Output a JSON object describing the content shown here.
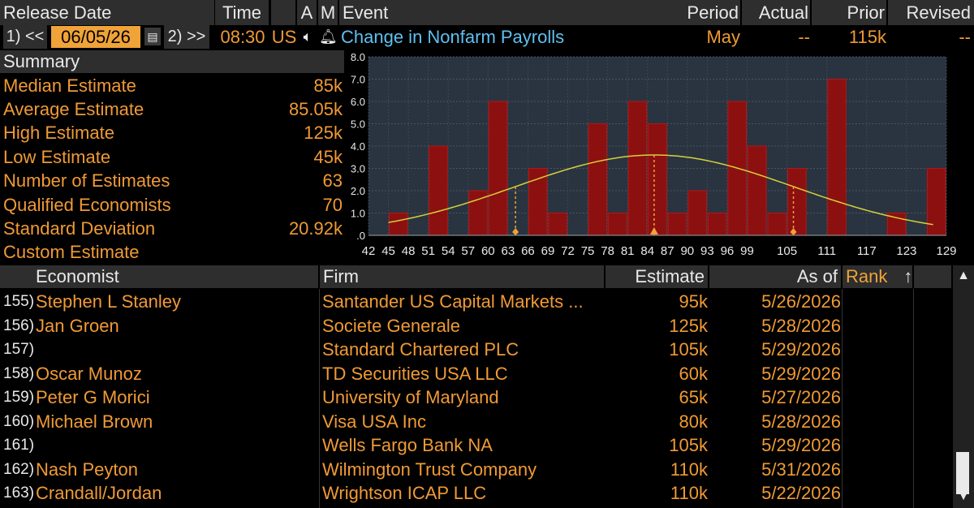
{
  "header": {
    "release_date": "Release Date",
    "time": "Time",
    "a": "A",
    "m": "M",
    "event": "Event",
    "period": "Period",
    "actual": "Actual",
    "prior": "Prior",
    "revised": "Revised"
  },
  "release": {
    "prev_btn": "1) <<",
    "date": "06/05/26",
    "next_btn": "2) >>",
    "time": "08:30",
    "country": "US",
    "event_name": "Change in Nonfarm Payrolls",
    "period": "May",
    "actual": "--",
    "prior": "115k",
    "revised": "--"
  },
  "summary": {
    "title": "Summary",
    "rows": [
      {
        "label": "Median Estimate",
        "value": "85k"
      },
      {
        "label": "Average Estimate",
        "value": "85.05k"
      },
      {
        "label": "High Estimate",
        "value": "125k"
      },
      {
        "label": "Low Estimate",
        "value": "45k"
      },
      {
        "label": "Number of Estimates",
        "value": "63"
      },
      {
        "label": "Qualified Economists",
        "value": "70"
      },
      {
        "label": "Standard Deviation",
        "value": "20.92k"
      },
      {
        "label": "Custom Estimate",
        "value": ""
      }
    ]
  },
  "chart_data": {
    "type": "bar",
    "x_start": 42,
    "x_step": 2.5,
    "values": [
      0,
      1,
      0,
      4,
      0,
      2,
      6,
      0,
      3,
      1,
      0,
      5,
      1,
      6,
      5,
      1,
      2,
      1,
      6,
      4,
      1,
      3,
      0,
      7,
      0,
      0,
      1,
      0,
      3
    ],
    "x_tick_labels": [
      "42",
      "45",
      "48",
      "51",
      "54",
      "57",
      "60",
      "63",
      "66",
      "69",
      "72",
      "75",
      "78",
      "81",
      "84",
      "87",
      "90",
      "93",
      "96",
      "99",
      "105",
      "111",
      "117",
      "123",
      "129"
    ],
    "x_tick_values": [
      42,
      45,
      48,
      51,
      54,
      57,
      60,
      63,
      66,
      69,
      72,
      75,
      78,
      81,
      84,
      87,
      90,
      93,
      96,
      99,
      105,
      111,
      117,
      123,
      129
    ],
    "y_tick_labels": [
      ".0",
      "1.0",
      "2.0",
      "3.0",
      "4.0",
      "5.0",
      "6.0",
      "7.0",
      "8.0"
    ],
    "ylim": [
      0,
      8
    ],
    "xlim": [
      42,
      129
    ],
    "normal_curve": {
      "mean": 85.05,
      "std": 20.92,
      "peak": 3.6
    },
    "markers": [
      64.13,
      85,
      105.97
    ],
    "colors": {
      "bar": "#8c1010",
      "curve": "#d6d13a",
      "marker": "#f0a338",
      "plot_bg": "#2a3440"
    }
  },
  "table": {
    "headers": {
      "economist": "Economist",
      "firm": "Firm",
      "estimate": "Estimate",
      "as_of": "As of",
      "rank": "Rank",
      "sort_arrow": "↑"
    },
    "rows": [
      {
        "num": "155)",
        "economist": "Stephen L Stanley",
        "firm": "Santander US Capital Markets ...",
        "estimate": "95k",
        "as_of": "5/26/2026"
      },
      {
        "num": "156)",
        "economist": "Jan Groen",
        "firm": "Societe Generale",
        "estimate": "125k",
        "as_of": "5/28/2026"
      },
      {
        "num": "157)",
        "economist": "",
        "firm": "Standard Chartered PLC",
        "estimate": "105k",
        "as_of": "5/29/2026"
      },
      {
        "num": "158)",
        "economist": "Oscar Munoz",
        "firm": "TD Securities USA LLC",
        "estimate": "60k",
        "as_of": "5/29/2026"
      },
      {
        "num": "159)",
        "economist": "Peter G Morici",
        "firm": "University of Maryland",
        "estimate": "65k",
        "as_of": "5/27/2026"
      },
      {
        "num": "160)",
        "economist": "Michael Brown",
        "firm": "Visa USA Inc",
        "estimate": "80k",
        "as_of": "5/28/2026"
      },
      {
        "num": "161)",
        "economist": "",
        "firm": "Wells Fargo Bank NA",
        "estimate": "105k",
        "as_of": "5/29/2026"
      },
      {
        "num": "162)",
        "economist": "Nash Peyton",
        "firm": "Wilmington Trust Company",
        "estimate": "110k",
        "as_of": "5/31/2026"
      },
      {
        "num": "163)",
        "economist": "Crandall/Jordan",
        "firm": "Wrightson ICAP LLC",
        "estimate": "110k",
        "as_of": "5/22/2026"
      }
    ]
  }
}
